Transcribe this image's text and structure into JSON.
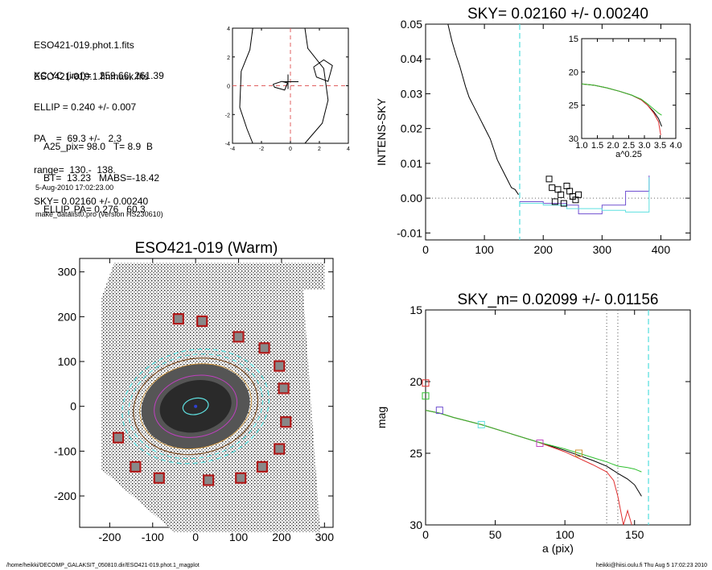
{
  "info": {
    "lines_a": [
      "ESO421-019.phot.1.fits",
      "ESO421-019.1.finmask.fits"
    ],
    "lines_b": [
      "XC,YC (iraf)=   259.66, 261.39",
      "ELLIP = 0.240 +/- 0.007",
      "PA    =  69.3 +/-   2.3",
      "range=  130.-  138.",
      "SKY= 0.02160 +/- 0.00240"
    ],
    "lines_c": [
      "A25_pix= 98.0   T= 8.9  B",
      "BT=  13.23   MABS=-18.42",
      "ELLIP, PA= 0.276   60.3"
    ],
    "lines_d": [
      "5-Aug-2010 17:02:23.00",
      "make_datalist0.pro (version HS230610)"
    ]
  },
  "footer": {
    "left": "/home/heikki/DECOMP_GALAKSIT_050810.dir/ESO421-019.phot.1_magplot",
    "right": "heikki@hiisi.oulu.fi  Thu Aug  5 17:02:23 2010"
  },
  "colors": {
    "cyan": "#5ee0e0",
    "red": "#e03030",
    "green": "#30c030",
    "blue": "#7050d0",
    "magenta": "#c040c0",
    "orange": "#d09030"
  },
  "chart_data": [
    {
      "id": "contour",
      "type": "contour",
      "title": "",
      "xlim": [
        -4,
        4
      ],
      "ylim": [
        -4,
        4
      ],
      "xticks": [
        "-4",
        "-2",
        "0",
        "2",
        "4"
      ],
      "yticks": [
        "-4",
        "-2",
        "0",
        "2",
        "4"
      ],
      "center_marker": [
        0,
        0
      ]
    },
    {
      "id": "sky",
      "type": "line",
      "title": "SKY= 0.02160 +/- 0.00240",
      "xlabel": "",
      "ylabel": "INTENS-SKY",
      "xlim": [
        0,
        450
      ],
      "ylim": [
        -0.012,
        0.05
      ],
      "xticks": [
        "0",
        "100",
        "200",
        "300",
        "400"
      ],
      "yticks": [
        "-0.01",
        "0.00",
        "0.01",
        "0.02",
        "0.03",
        "0.04",
        "0.05"
      ],
      "vline": 160,
      "series": [
        {
          "color_key": "black",
          "x": [
            38,
            45,
            52,
            58,
            63,
            68,
            74,
            80,
            86,
            92,
            98,
            104,
            110,
            116,
            122,
            128,
            134,
            140,
            146,
            152,
            158
          ],
          "y": [
            0.05,
            0.045,
            0.041,
            0.038,
            0.035,
            0.032,
            0.029,
            0.027,
            0.025,
            0.023,
            0.021,
            0.019,
            0.017,
            0.014,
            0.011,
            0.009,
            0.007,
            0.005,
            0.003,
            0.0025,
            0.001
          ]
        },
        {
          "color_key": "blue",
          "x": [
            160,
            200,
            220,
            240,
            260,
            300,
            340,
            380
          ],
          "y": [
            -0.001,
            -0.0015,
            -0.0015,
            -0.002,
            -0.0045,
            -0.002,
            0.002,
            0.0065
          ]
        },
        {
          "color_key": "cyan",
          "x": [
            160,
            200,
            220,
            240,
            260,
            300,
            340,
            380
          ],
          "y": [
            -0.0015,
            -0.002,
            -0.002,
            -0.003,
            -0.003,
            -0.0035,
            -0.004,
            0.006
          ]
        }
      ],
      "scatter": {
        "x": [
          210,
          215,
          220,
          225,
          230,
          235,
          240,
          245,
          250,
          255,
          260
        ],
        "y": [
          0.0055,
          0.003,
          -0.001,
          0.0025,
          0.001,
          -0.0015,
          0.0035,
          0.002,
          0.0005,
          -0.0005,
          0.001
        ]
      }
    },
    {
      "id": "inset",
      "type": "line",
      "title": "",
      "xlabel": "a^0.25",
      "ylabel": "",
      "xlim": [
        1.0,
        4.0
      ],
      "ylim": [
        30,
        15
      ],
      "xticks": [
        "1.0",
        "1.5",
        "2.0",
        "2.5",
        "3.0",
        "3.5",
        "4.0"
      ],
      "yticks": [
        "15",
        "20",
        "25",
        "30"
      ],
      "series": [
        {
          "color_key": "black",
          "x": [
            1.0,
            1.4,
            1.8,
            2.2,
            2.6,
            2.9,
            3.1,
            3.3,
            3.45,
            3.55
          ],
          "y": [
            21.8,
            22.0,
            22.4,
            22.9,
            23.5,
            24.2,
            25.0,
            26.0,
            27.0,
            28.2
          ]
        },
        {
          "color_key": "red",
          "x": [
            1.0,
            1.4,
            1.8,
            2.2,
            2.6,
            2.9,
            3.1,
            3.3,
            3.45,
            3.52
          ],
          "y": [
            21.8,
            22.0,
            22.4,
            22.9,
            23.5,
            24.2,
            25.0,
            26.2,
            27.5,
            29.5
          ]
        },
        {
          "color_key": "green",
          "x": [
            1.0,
            1.4,
            1.8,
            2.2,
            2.6,
            2.9,
            3.1,
            3.3,
            3.45,
            3.55
          ],
          "y": [
            21.8,
            22.0,
            22.4,
            22.9,
            23.5,
            24.1,
            24.8,
            25.6,
            26.2,
            26.5
          ]
        }
      ]
    },
    {
      "id": "image",
      "type": "image",
      "title": "ESO421-019 (Warm)",
      "xlim": [
        -270,
        320
      ],
      "ylim": [
        -270,
        330
      ],
      "xticks": [
        "-200",
        "-100",
        "0",
        "100",
        "200",
        "300"
      ],
      "yticks": [
        "-200",
        "-100",
        "0",
        "100",
        "200",
        "300"
      ],
      "boxes": [
        [
          -40,
          195
        ],
        [
          15,
          190
        ],
        [
          100,
          155
        ],
        [
          160,
          130
        ],
        [
          195,
          90
        ],
        [
          205,
          40
        ],
        [
          210,
          -35
        ],
        [
          195,
          -95
        ],
        [
          155,
          -135
        ],
        [
          105,
          -160
        ],
        [
          30,
          -165
        ],
        [
          -85,
          -160
        ],
        [
          -140,
          -135
        ],
        [
          -180,
          -70
        ]
      ]
    },
    {
      "id": "mag",
      "type": "line",
      "title": "SKY_m=  0.02099 +/- 0.01156",
      "xlabel": "a (pix)",
      "ylabel": "mag",
      "xlim": [
        0,
        190
      ],
      "ylim": [
        30,
        15
      ],
      "xticks": [
        "0",
        "50",
        "100",
        "150"
      ],
      "yticks": [
        "15",
        "20",
        "25",
        "30"
      ],
      "vlines_dotted": [
        130,
        138
      ],
      "vline_cyan": 160,
      "series": [
        {
          "color_key": "black",
          "x": [
            0,
            10,
            20,
            40,
            60,
            80,
            100,
            120,
            130,
            138,
            145,
            150,
            155
          ],
          "y": [
            22.0,
            22.2,
            22.5,
            23.0,
            23.6,
            24.2,
            24.8,
            25.5,
            25.9,
            26.4,
            26.8,
            27.2,
            28.0
          ]
        },
        {
          "color_key": "red",
          "x": [
            0,
            10,
            20,
            40,
            60,
            80,
            100,
            120,
            130,
            135,
            138,
            142,
            145,
            148
          ],
          "y": [
            22.0,
            22.2,
            22.5,
            23.0,
            23.6,
            24.2,
            24.9,
            25.8,
            26.3,
            26.9,
            28.0,
            30.0,
            29.0,
            30.0
          ]
        },
        {
          "color_key": "green",
          "x": [
            0,
            10,
            20,
            40,
            60,
            80,
            100,
            120,
            130,
            138,
            145,
            150,
            155
          ],
          "y": [
            22.0,
            22.2,
            22.5,
            23.0,
            23.6,
            24.2,
            24.7,
            25.3,
            25.6,
            25.9,
            26.0,
            26.1,
            26.3
          ]
        }
      ],
      "markers": [
        {
          "x": 0,
          "y": 20.1,
          "color_key": "red"
        },
        {
          "x": 0,
          "y": 21.0,
          "color_key": "green"
        },
        {
          "x": 10,
          "y": 22.0,
          "color_key": "blue"
        },
        {
          "x": 40,
          "y": 23.0,
          "color_key": "cyan"
        },
        {
          "x": 82,
          "y": 24.3,
          "color_key": "magenta"
        },
        {
          "x": 110,
          "y": 25.0,
          "color_key": "orange"
        }
      ]
    }
  ]
}
